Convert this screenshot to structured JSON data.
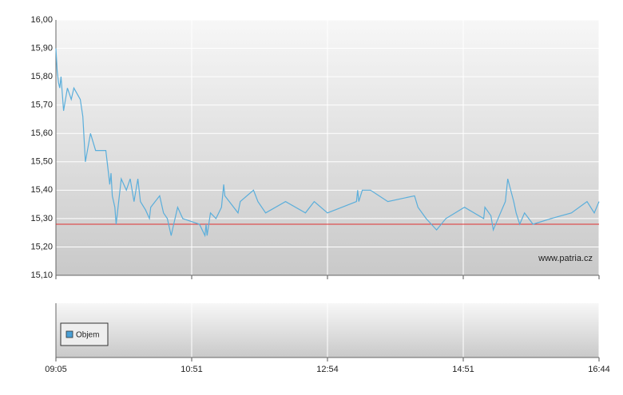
{
  "chart_data": {
    "type": "line",
    "x": [
      "09:05",
      "09:06",
      "09:07",
      "09:08",
      "09:09",
      "09:11",
      "09:14",
      "09:17",
      "09:19",
      "09:24",
      "09:26",
      "09:27",
      "09:28",
      "09:32",
      "09:36",
      "09:44",
      "09:46",
      "09:47",
      "09:48",
      "09:49",
      "09:51",
      "09:52",
      "09:56",
      "10:00",
      "10:03",
      "10:06",
      "10:09",
      "10:11",
      "10:15",
      "10:18",
      "10:19",
      "10:26",
      "10:29",
      "10:32",
      "10:35",
      "10:37",
      "10:40",
      "10:44",
      "10:58",
      "11:03",
      "11:04",
      "11:05",
      "11:08",
      "11:13",
      "11:18",
      "11:20",
      "11:21",
      "11:27",
      "11:33",
      "11:35",
      "11:47",
      "11:51",
      "11:58",
      "12:16",
      "12:34",
      "12:42",
      "12:54",
      "13:19",
      "13:20",
      "13:21",
      "13:24",
      "13:31",
      "13:46",
      "14:09",
      "14:12",
      "14:19",
      "14:28",
      "14:36",
      "14:52",
      "15:08",
      "15:09",
      "15:14",
      "15:16",
      "15:22",
      "15:26",
      "15:28",
      "15:33",
      "15:35",
      "15:38",
      "15:42",
      "15:49",
      "16:04",
      "16:21",
      "16:34",
      "16:40",
      "16:44"
    ],
    "series": [
      {
        "color": "#5aaedb",
        "values": [
          15.9,
          15.82,
          15.78,
          15.76,
          15.8,
          15.68,
          15.76,
          15.72,
          15.76,
          15.72,
          15.66,
          15.58,
          15.5,
          15.6,
          15.54,
          15.54,
          15.46,
          15.42,
          15.46,
          15.38,
          15.34,
          15.28,
          15.44,
          15.4,
          15.44,
          15.36,
          15.44,
          15.36,
          15.33,
          15.3,
          15.34,
          15.38,
          15.32,
          15.3,
          15.24,
          15.28,
          15.34,
          15.3,
          15.28,
          15.24,
          15.28,
          15.24,
          15.32,
          15.3,
          15.34,
          15.42,
          15.38,
          15.35,
          15.32,
          15.36,
          15.4,
          15.36,
          15.32,
          15.36,
          15.32,
          15.36,
          15.32,
          15.36,
          15.4,
          15.36,
          15.4,
          15.4,
          15.36,
          15.38,
          15.34,
          15.3,
          15.26,
          15.3,
          15.34,
          15.3,
          15.34,
          15.31,
          15.26,
          15.32,
          15.36,
          15.44,
          15.36,
          15.32,
          15.28,
          15.32,
          15.28,
          15.3,
          15.32,
          15.36,
          15.32,
          15.36
        ]
      }
    ],
    "reference_line": {
      "value": 15.28,
      "color": "#e03030"
    },
    "xlim": [
      "09:05",
      "16:44"
    ],
    "xticks": [
      "09:05",
      "10:51",
      "12:54",
      "14:51",
      "16:44"
    ],
    "ylim": [
      15.1,
      16.0
    ],
    "yticks": [
      {
        "value": 15.1,
        "label": "15,10"
      },
      {
        "value": 15.2,
        "label": "15,20"
      },
      {
        "value": 15.3,
        "label": "15,30"
      },
      {
        "value": 15.4,
        "label": "15,40"
      },
      {
        "value": 15.5,
        "label": "15,50"
      },
      {
        "value": 15.6,
        "label": "15,60"
      },
      {
        "value": 15.7,
        "label": "15,70"
      },
      {
        "value": 15.8,
        "label": "15,80"
      },
      {
        "value": 15.9,
        "label": "15,90"
      },
      {
        "value": 16.0,
        "label": "16,00"
      }
    ],
    "grid": true,
    "watermark": "www.patria.cz",
    "volume_panel": {
      "legend": "Objem",
      "color": "#4a9fd5"
    }
  }
}
